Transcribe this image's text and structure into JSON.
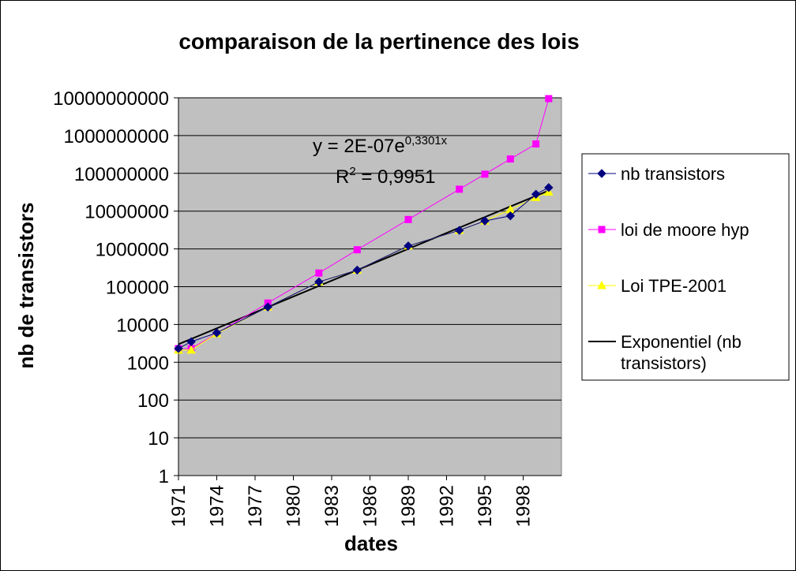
{
  "chart_data": {
    "type": "line",
    "title": "comparaison de la pertinence des lois",
    "xlabel": "dates",
    "ylabel": "nb de transistors",
    "y_scale": "log",
    "ylim": [
      1,
      10000000000
    ],
    "xlim": [
      1971,
      2001
    ],
    "x_ticks": [
      "1971",
      "1974",
      "1977",
      "1980",
      "1983",
      "1986",
      "1989",
      "1992",
      "1995",
      "1998"
    ],
    "y_ticks": [
      "1",
      "10",
      "100",
      "1000",
      "10000",
      "100000",
      "1000000",
      "10000000",
      "100000000",
      "1000000000",
      "10000000000"
    ],
    "grid": "horizontal",
    "plot_background": "#c0c0c0",
    "legend_position": "right",
    "series": [
      {
        "name": "nb transistors",
        "color": "#000080",
        "marker": "diamond",
        "points": [
          [
            1971,
            2300
          ],
          [
            1972,
            3500
          ],
          [
            1974,
            6000
          ],
          [
            1978,
            29000
          ],
          [
            1982,
            134000
          ],
          [
            1985,
            275000
          ],
          [
            1989,
            1200000
          ],
          [
            1993,
            3100000
          ],
          [
            1995,
            5500000
          ],
          [
            1997,
            7500000
          ],
          [
            1999,
            28000000
          ],
          [
            2000,
            42000000
          ]
        ]
      },
      {
        "name": "loi de moore hyp",
        "color": "#ff00ff",
        "marker": "square",
        "points": [
          [
            1971,
            2300
          ],
          [
            1972,
            2300
          ],
          [
            1978,
            37000
          ],
          [
            1982,
            230000
          ],
          [
            1985,
            950000
          ],
          [
            1989,
            6000000
          ],
          [
            1993,
            38000000
          ],
          [
            1995,
            95000000
          ],
          [
            1997,
            240000000
          ],
          [
            1999,
            600000000
          ],
          [
            2000,
            9500000000
          ]
        ]
      },
      {
        "name": "Loi TPE-2001",
        "color": "#ffff00",
        "marker": "triangle",
        "points": [
          [
            1971,
            2100
          ],
          [
            1972,
            2100
          ],
          [
            1974,
            5700
          ],
          [
            1978,
            29000
          ],
          [
            1982,
            134000
          ],
          [
            1985,
            275000
          ],
          [
            1989,
            1200000
          ],
          [
            1993,
            3100000
          ],
          [
            1995,
            5500000
          ],
          [
            1997,
            11000000
          ],
          [
            1999,
            23000000
          ],
          [
            2000,
            32000000
          ]
        ]
      },
      {
        "name": "Exponentiel (nb transistors)",
        "color": "#000000",
        "marker": "none",
        "trendline": true,
        "points": [
          [
            1971,
            3000
          ],
          [
            2000,
            35000000
          ]
        ]
      }
    ],
    "annotations": {
      "equation_main": "y = 2E-07e",
      "equation_exp": "0,3301x",
      "r2_prefix": "R",
      "r2_exp": "2",
      "r2_suffix": " = 0,9951"
    }
  }
}
